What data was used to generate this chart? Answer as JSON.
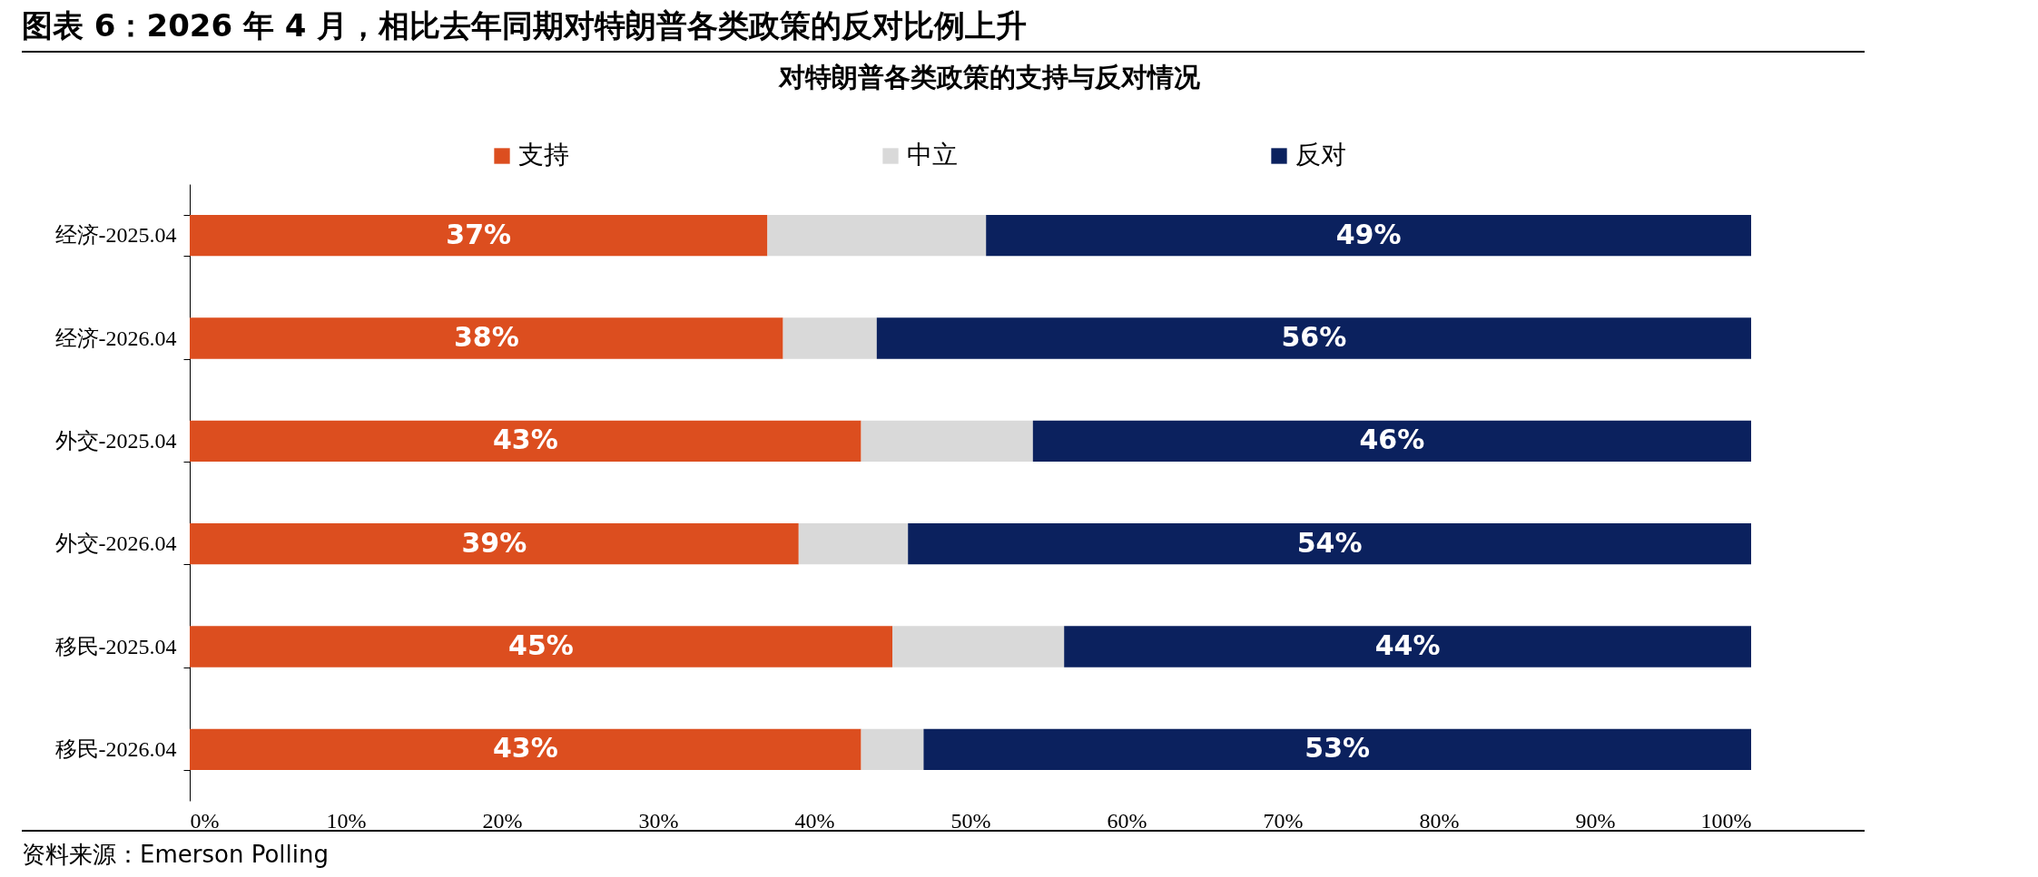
{
  "chart_data": {
    "type": "bar",
    "orientation": "horizontal",
    "stacked": true,
    "title": "图表 6：2026 年 4 月，相比去年同期对特朗普各类政策的反对比例上升",
    "subtitle": "对特朗普各类政策的支持与反对情况",
    "categories": [
      "经济-2025.04",
      "经济-2026.04",
      "外交-2025.04",
      "外交-2026.04",
      "移民-2025.04",
      "移民-2026.04"
    ],
    "series": [
      {
        "name": "支持",
        "color": "#dc4e1f",
        "values": [
          37,
          38,
          43,
          39,
          45,
          43
        ],
        "value_labels": [
          "37%",
          "38%",
          "43%",
          "39%",
          "45%",
          "43%"
        ]
      },
      {
        "name": "中立",
        "color": "#d9d9d9",
        "values": [
          14,
          6,
          11,
          7,
          11,
          4
        ]
      },
      {
        "name": "反对",
        "color": "#0b215e",
        "values": [
          49,
          56,
          46,
          54,
          44,
          53
        ],
        "value_labels": [
          "49%",
          "56%",
          "46%",
          "54%",
          "44%",
          "53%"
        ]
      }
    ],
    "xlim": [
      0,
      100
    ],
    "xticks": [
      {
        "value": 0,
        "label": "0%"
      },
      {
        "value": 10,
        "label": "10%"
      },
      {
        "value": 20,
        "label": "20%"
      },
      {
        "value": 30,
        "label": "30%"
      },
      {
        "value": 40,
        "label": "40%"
      },
      {
        "value": 50,
        "label": "50%"
      },
      {
        "value": 60,
        "label": "60%"
      },
      {
        "value": 70,
        "label": "70%"
      },
      {
        "value": 80,
        "label": "80%"
      },
      {
        "value": 90,
        "label": "90%"
      },
      {
        "value": 100,
        "label": "100%"
      }
    ],
    "legend": "top",
    "grid": false,
    "annotations": [
      "资料来源：Emerson Polling"
    ]
  }
}
